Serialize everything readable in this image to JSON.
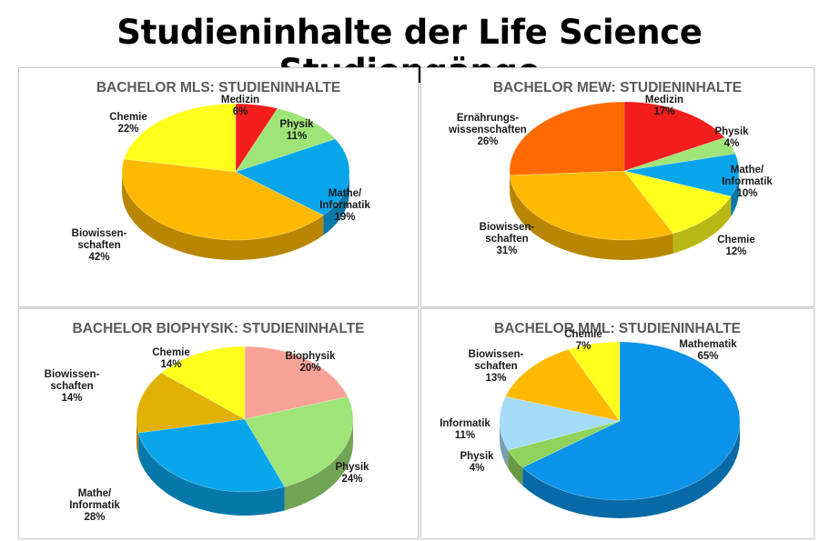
{
  "title": "Studieninhalte der Life Science Studiengänge",
  "chart_data": [
    {
      "type": "pie",
      "title": "BACHELOR MLS: STUDIENINHALTE",
      "slices": [
        {
          "label": [
            "Medizin"
          ],
          "value": 6,
          "display": "6%",
          "color": "#f21d1d"
        },
        {
          "label": [
            "Physik"
          ],
          "value": 11,
          "display": "11%",
          "color": "#9ee477"
        },
        {
          "label": [
            "Mathe/",
            "Informatik"
          ],
          "value": 19,
          "display": "19%",
          "color": "#0aa6ec"
        },
        {
          "label": [
            "Biowissen-",
            "schaften"
          ],
          "value": 42,
          "display": "42%",
          "color": "#ffba00"
        },
        {
          "label": [
            "Chemie"
          ],
          "value": 22,
          "display": "22%",
          "color": "#ffff1c"
        }
      ]
    },
    {
      "type": "pie",
      "title": "BACHELOR MEW: STUDIENINHALTE",
      "slices": [
        {
          "label": [
            "Medizin"
          ],
          "value": 17,
          "display": "17%",
          "color": "#f21d1d"
        },
        {
          "label": [
            "Physik"
          ],
          "value": 4,
          "display": "4%",
          "color": "#9ee477"
        },
        {
          "label": [
            "Mathe/",
            "Informatik"
          ],
          "value": 10,
          "display": "10%",
          "color": "#0aa6ec"
        },
        {
          "label": [
            "Chemie"
          ],
          "value": 12,
          "display": "12%",
          "color": "#ffff1c"
        },
        {
          "label": [
            "Biowissen-",
            "schaften"
          ],
          "value": 31,
          "display": "31%",
          "color": "#ffba00"
        },
        {
          "label": [
            "Ernährungs-",
            "wissenschaften"
          ],
          "value": 26,
          "display": "26%",
          "color": "#ff6a00"
        }
      ]
    },
    {
      "type": "pie",
      "title": "BACHELOR BIOPHYSIK: STUDIENINHALTE",
      "slices": [
        {
          "label": [
            "Biophysik"
          ],
          "value": 20,
          "display": "20%",
          "color": "#f8a297"
        },
        {
          "label": [
            "Physik"
          ],
          "value": 24,
          "display": "24%",
          "color": "#9ee477"
        },
        {
          "label": [
            "Mathe/",
            "Informatik"
          ],
          "value": 28,
          "display": "28%",
          "color": "#0aa6ec"
        },
        {
          "label": [
            "Biowissen-",
            "schaften"
          ],
          "value": 14,
          "display": "14%",
          "color": "#e2b106"
        },
        {
          "label": [
            "Chemie"
          ],
          "value": 14,
          "display": "14%",
          "color": "#ffff1c"
        }
      ]
    },
    {
      "type": "pie",
      "title": "BACHELOR MML: STUDIENINHALTE",
      "slices": [
        {
          "label": [
            "Mathematik"
          ],
          "value": 65,
          "display": "65%",
          "color": "#0a93e8"
        },
        {
          "label": [
            "Physik"
          ],
          "value": 4,
          "display": "4%",
          "color": "#8fd35c"
        },
        {
          "label": [
            "Informatik"
          ],
          "value": 11,
          "display": "11%",
          "color": "#a5dcf7"
        },
        {
          "label": [
            "Biowissen-",
            "schaften"
          ],
          "value": 13,
          "display": "13%",
          "color": "#ffba00"
        },
        {
          "label": [
            "Chemie"
          ],
          "value": 7,
          "display": "7%",
          "color": "#ffff1c"
        }
      ]
    }
  ]
}
